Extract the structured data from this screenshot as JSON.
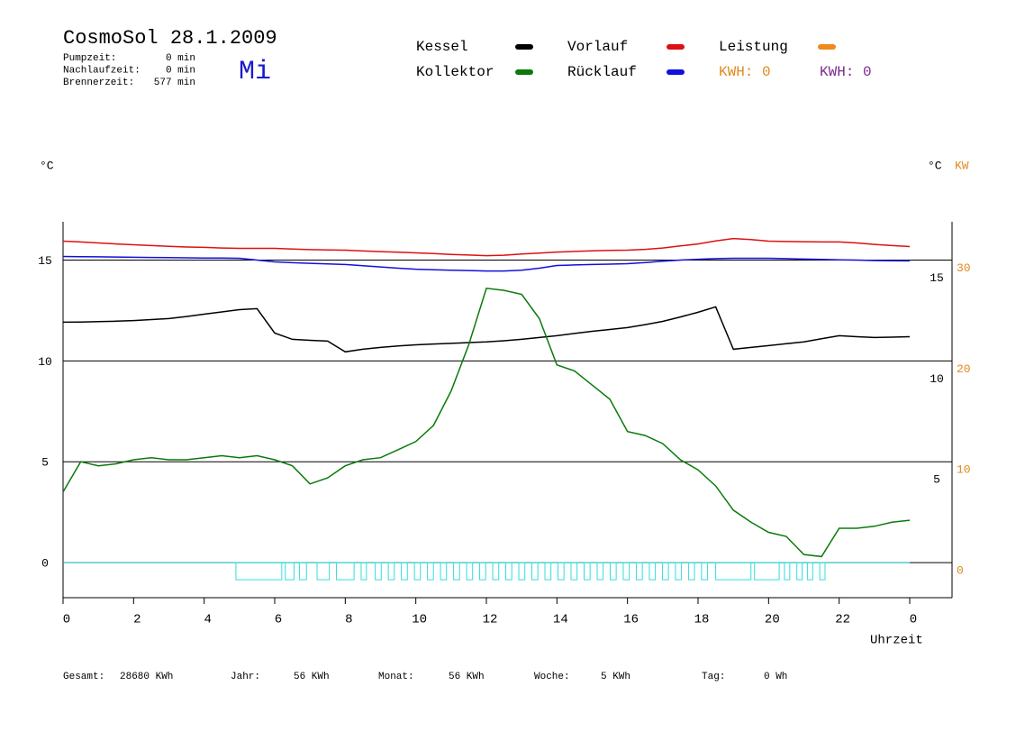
{
  "chart_data": {
    "type": "line",
    "title": "CosmoSol 28.1.2009",
    "day": "Mi",
    "info": [
      {
        "label": "Pumpzeit:",
        "value": "0 min"
      },
      {
        "label": "Nachlaufzeit:",
        "value": "0 min"
      },
      {
        "label": "Brennerzeit:",
        "value": "577 min"
      }
    ],
    "y_label": "°C",
    "y2_label_unit": "°C",
    "y2_label": "KW",
    "x_label": "Uhrzeit",
    "xlim": [
      0,
      25.2
    ],
    "xticks": [
      0,
      2,
      4,
      6,
      8,
      10,
      12,
      14,
      16,
      18,
      20,
      22,
      {
        "value": 24,
        "label": "0"
      }
    ],
    "ylim": [
      -1.74,
      16.9
    ],
    "yticks": [
      0,
      5,
      10,
      15
    ],
    "right_yticks": [
      5,
      10,
      15
    ],
    "y2lim": [
      -3.48,
      33.8
    ],
    "y2ticks": [
      0,
      10,
      20,
      30
    ],
    "y2_color": "#e08a1c",
    "grid": true,
    "x": [
      0,
      0.5,
      1,
      1.5,
      2,
      2.5,
      3,
      3.5,
      4,
      4.5,
      5,
      5.5,
      6,
      6.5,
      7,
      7.5,
      8,
      8.5,
      9,
      9.5,
      10,
      10.5,
      11,
      11.5,
      12,
      12.5,
      13,
      13.5,
      14,
      14.5,
      15,
      15.5,
      16,
      16.5,
      17,
      17.5,
      18,
      18.5,
      19,
      19.5,
      20,
      20.5,
      21,
      21.5,
      22,
      22.5,
      23,
      23.5,
      24
    ],
    "series": [
      {
        "name": "Kessel",
        "color": "#000000",
        "values": [
          11.92,
          11.93,
          11.95,
          11.97,
          12.0,
          12.05,
          12.1,
          12.2,
          12.32,
          12.43,
          12.54,
          12.59,
          11.38,
          11.07,
          11.02,
          10.98,
          10.45,
          10.58,
          10.67,
          10.74,
          10.8,
          10.84,
          10.87,
          10.91,
          10.94,
          11.0,
          11.07,
          11.16,
          11.25,
          11.36,
          11.47,
          11.56,
          11.65,
          11.8,
          11.96,
          12.18,
          12.41,
          12.68,
          10.58,
          10.67,
          10.76,
          10.85,
          10.94,
          11.1,
          11.25,
          11.2,
          11.16,
          11.18,
          11.2
        ]
      },
      {
        "name": "Kollektor",
        "color": "#0a7a0a",
        "values": [
          3.5,
          5.0,
          4.8,
          4.9,
          5.1,
          5.2,
          5.1,
          5.1,
          5.2,
          5.3,
          5.2,
          5.3,
          5.1,
          4.8,
          3.9,
          4.2,
          4.8,
          5.1,
          5.2,
          5.6,
          6.0,
          6.8,
          8.5,
          10.8,
          13.6,
          13.5,
          13.3,
          12.1,
          9.8,
          9.5,
          8.8,
          8.1,
          6.5,
          6.3,
          5.9,
          5.1,
          4.6,
          3.8,
          2.6,
          2.0,
          1.5,
          1.3,
          0.4,
          0.3,
          1.7,
          1.7,
          1.8,
          2.0,
          2.1
        ]
      },
      {
        "name": "Vorlauf",
        "color": "#dd1111",
        "values": [
          15.94,
          15.9,
          15.85,
          15.8,
          15.76,
          15.72,
          15.68,
          15.65,
          15.63,
          15.6,
          15.58,
          15.58,
          15.58,
          15.55,
          15.52,
          15.5,
          15.49,
          15.45,
          15.42,
          15.39,
          15.36,
          15.32,
          15.28,
          15.25,
          15.22,
          15.24,
          15.3,
          15.35,
          15.4,
          15.43,
          15.46,
          15.48,
          15.49,
          15.53,
          15.6,
          15.7,
          15.8,
          15.95,
          16.07,
          16.02,
          15.94,
          15.92,
          15.91,
          15.9,
          15.9,
          15.85,
          15.78,
          15.72,
          15.67
        ]
      },
      {
        "name": "Rücklauf",
        "color": "#1111dd",
        "values": [
          15.18,
          15.17,
          15.16,
          15.15,
          15.14,
          15.13,
          15.12,
          15.11,
          15.1,
          15.1,
          15.09,
          15.0,
          14.91,
          14.87,
          14.84,
          14.81,
          14.78,
          14.72,
          14.66,
          14.6,
          14.55,
          14.52,
          14.5,
          14.48,
          14.46,
          14.46,
          14.5,
          14.6,
          14.73,
          14.76,
          14.78,
          14.8,
          14.82,
          14.88,
          14.94,
          15.0,
          15.04,
          15.07,
          15.09,
          15.09,
          15.09,
          15.07,
          15.05,
          15.03,
          15.01,
          15.0,
          14.98,
          14.97,
          14.96
        ]
      }
    ],
    "legend_extra": [
      {
        "name": "Leistung",
        "color": "#f08a1c"
      }
    ],
    "kwh_labels": [
      {
        "label": "KWH: 0",
        "color": "#e08a1c"
      },
      {
        "label": "KWH: 0",
        "color": "#7a2a8a"
      }
    ],
    "pump_color": "#33dddd",
    "pump_intervals": [
      [
        4.9,
        6.2
      ],
      [
        6.3,
        6.55
      ],
      [
        6.7,
        6.9
      ],
      [
        7.2,
        7.55
      ],
      [
        7.75,
        8.25
      ],
      [
        8.45,
        8.6
      ],
      [
        8.85,
        9.02
      ],
      [
        9.22,
        9.39
      ],
      [
        9.59,
        9.76
      ],
      [
        9.96,
        10.13
      ],
      [
        10.33,
        10.5
      ],
      [
        10.7,
        10.87
      ],
      [
        11.07,
        11.24
      ],
      [
        11.44,
        11.61
      ],
      [
        11.81,
        11.98
      ],
      [
        12.18,
        12.35
      ],
      [
        12.55,
        12.72
      ],
      [
        12.92,
        13.09
      ],
      [
        13.29,
        13.46
      ],
      [
        13.66,
        13.83
      ],
      [
        14.03,
        14.2
      ],
      [
        14.4,
        14.57
      ],
      [
        14.77,
        14.94
      ],
      [
        15.14,
        15.31
      ],
      [
        15.51,
        15.68
      ],
      [
        15.88,
        16.05
      ],
      [
        16.25,
        16.42
      ],
      [
        16.62,
        16.79
      ],
      [
        16.99,
        17.16
      ],
      [
        17.36,
        17.53
      ],
      [
        17.73,
        17.9
      ],
      [
        18.1,
        18.27
      ],
      [
        18.5,
        19.5
      ],
      [
        19.6,
        20.3
      ],
      [
        20.45,
        20.6
      ],
      [
        20.8,
        20.95
      ],
      [
        21.1,
        21.25
      ],
      [
        21.45,
        21.6
      ]
    ],
    "footer": [
      {
        "label": "Gesamt:",
        "value": "28680 KWh"
      },
      {
        "label": "Jahr:",
        "value": "56 KWh"
      },
      {
        "label": "Monat:",
        "value": "56 KWh"
      },
      {
        "label": "Woche:",
        "value": "5 KWh"
      },
      {
        "label": "Tag:",
        "value": "0 Wh"
      }
    ]
  }
}
